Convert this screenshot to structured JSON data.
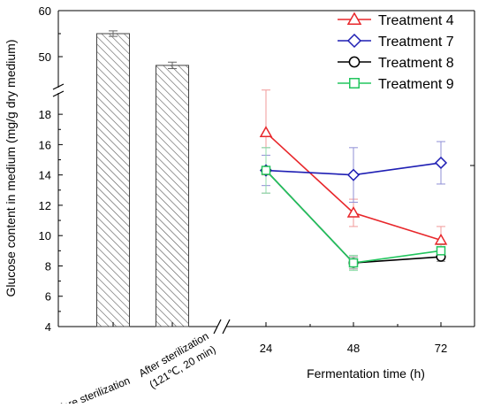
{
  "chart_data": {
    "type": "bar",
    "ylabel": "Glucose content in medium (mg/g dry medium)",
    "xlabel": "Fermentation time (h)",
    "ylim_lower": [
      4,
      19
    ],
    "ylim_upper": [
      45,
      60
    ],
    "y_axis_break": true,
    "x_axis_break": true,
    "upper_yticks": [
      "60",
      "50"
    ],
    "lower_yticks": [
      "18",
      "16",
      "14",
      "12",
      "10",
      "8",
      "6",
      "4"
    ],
    "bars": [
      {
        "category": "Before sterilization",
        "value": 55.0,
        "error": 0.6
      },
      {
        "category": "After sterilization (121℃, 20 min)",
        "line1": "After sterilization",
        "line2": "(121℃, 20 min)",
        "value": 48.1,
        "error": 0.7
      }
    ],
    "x": [
      "24",
      "48",
      "72"
    ],
    "series": [
      {
        "name": "Treatment 4",
        "color": "#e8272b",
        "marker": "triangle",
        "values": [
          16.8,
          11.5,
          9.7
        ],
        "errors": [
          2.8,
          0.9,
          0.9
        ]
      },
      {
        "name": "Treatment 7",
        "color": "#1f1fb4",
        "marker": "diamond",
        "values": [
          14.3,
          14.0,
          14.8
        ],
        "errors": [
          1.0,
          1.8,
          1.4
        ]
      },
      {
        "name": "Treatment 8",
        "color": "#000000",
        "marker": "circle",
        "values": [
          14.3,
          8.2,
          8.6
        ],
        "errors": [
          1.5,
          0.4,
          0.3
        ]
      },
      {
        "name": "Treatment 9",
        "color": "#22c55e",
        "marker": "square",
        "values": [
          14.3,
          8.2,
          9.0
        ],
        "errors": [
          1.5,
          0.5,
          0.4
        ]
      }
    ],
    "legend_position": "top-right",
    "grid": false
  }
}
